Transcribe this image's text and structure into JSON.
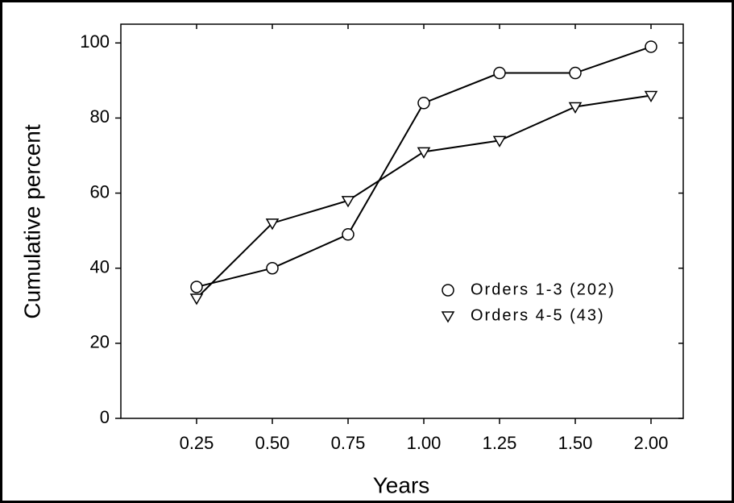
{
  "chart_data": {
    "type": "line",
    "xlabel": "Years",
    "ylabel": "Cumulative percent",
    "categories": [
      "0.25",
      "0.50",
      "0.75",
      "1.00",
      "1.25",
      "1.50",
      "2.00"
    ],
    "series": [
      {
        "name": "Orders 1-3 (202)",
        "color": "#000000",
        "marker": "circle",
        "values": [
          35,
          40,
          49,
          84,
          92,
          92,
          99
        ]
      },
      {
        "name": "Orders 4-5 (43)",
        "color": "#000000",
        "marker": "triangle-down",
        "values": [
          32,
          52,
          58,
          71,
          74,
          83,
          86
        ]
      }
    ],
    "ylim": [
      0,
      105
    ],
    "yticks": [
      0,
      20,
      40,
      60,
      80,
      100
    ],
    "grid": false,
    "legend": "right"
  }
}
